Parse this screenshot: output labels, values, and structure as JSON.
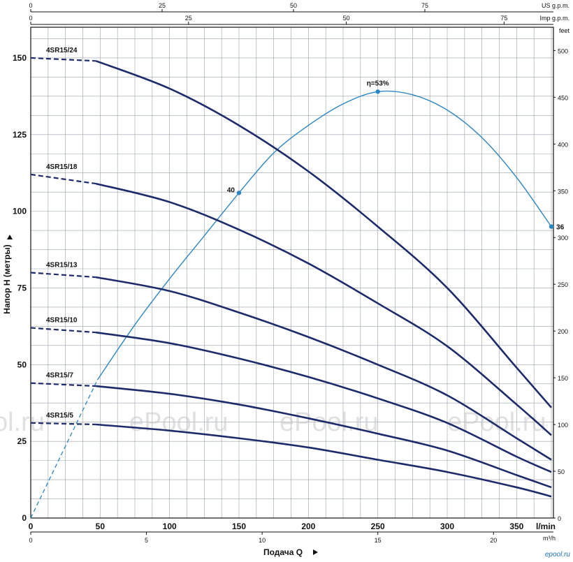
{
  "watermark": {
    "texts": [
      "ol.ru",
      "ePool.ru",
      "ePool.ru",
      "ePool.ru"
    ],
    "corner": "epool.ru"
  },
  "chart_data": {
    "type": "line",
    "title": "",
    "xlabel": "Подача Q",
    "ylabel": "Напор H (метры)",
    "x_unit": "l/min",
    "y_right_unit": "feet",
    "xlim": [
      0,
      375
    ],
    "ylim": [
      0,
      160
    ],
    "grid": true,
    "primary_x_ticks": [
      {
        "v": 0,
        "label": "0"
      },
      {
        "v": 50,
        "label": "50"
      },
      {
        "v": 100,
        "label": "100"
      },
      {
        "v": 150,
        "label": "150"
      },
      {
        "v": 200,
        "label": "200"
      },
      {
        "v": 250,
        "label": "250"
      },
      {
        "v": 300,
        "label": "300"
      },
      {
        "v": 350,
        "label": "350"
      }
    ],
    "m3h_axis": {
      "unit": "m³/h",
      "ticks": [
        {
          "v": 0,
          "label": "0"
        },
        {
          "v": 5,
          "label": "5"
        },
        {
          "v": 10,
          "label": "10"
        },
        {
          "v": 15,
          "label": "15"
        },
        {
          "v": 20,
          "label": "20"
        }
      ]
    },
    "us_gpm_axis": {
      "unit": "US g.p.m.",
      "ticks": [
        {
          "v": 0,
          "label": "0"
        },
        {
          "v": 25,
          "label": "25"
        },
        {
          "v": 50,
          "label": "50"
        },
        {
          "v": 75,
          "label": "75"
        }
      ]
    },
    "imp_gpm_axis": {
      "unit": "Imp g.p.m.",
      "ticks": [
        {
          "v": 0,
          "label": "0"
        },
        {
          "v": 25,
          "label": "25"
        },
        {
          "v": 50,
          "label": "50"
        },
        {
          "v": 75,
          "label": "75"
        }
      ]
    },
    "left_y_ticks": [
      {
        "v": 0,
        "label": "0"
      },
      {
        "v": 25,
        "label": "25"
      },
      {
        "v": 50,
        "label": "50"
      },
      {
        "v": 75,
        "label": "75"
      },
      {
        "v": 100,
        "label": "100"
      },
      {
        "v": 125,
        "label": "125"
      },
      {
        "v": 150,
        "label": "150"
      }
    ],
    "right_y_ticks": [
      {
        "v": 0,
        "label": "0"
      },
      {
        "v": 50,
        "label": "50"
      },
      {
        "v": 100,
        "label": "100"
      },
      {
        "v": 150,
        "label": "150"
      },
      {
        "v": 200,
        "label": "200"
      },
      {
        "v": 250,
        "label": "250"
      },
      {
        "v": 300,
        "label": "300"
      },
      {
        "v": 350,
        "label": "350"
      },
      {
        "v": 400,
        "label": "400"
      },
      {
        "v": 450,
        "label": "450"
      },
      {
        "v": 500,
        "label": "500"
      }
    ],
    "series": [
      {
        "name": "4SR15/24",
        "dashed_until": 47,
        "x": [
          0,
          47,
          100,
          150,
          200,
          250,
          300,
          350,
          375
        ],
        "y": [
          150,
          149,
          140,
          128,
          113,
          95,
          75,
          49,
          36
        ]
      },
      {
        "name": "4SR15/18",
        "dashed_until": 47,
        "x": [
          0,
          47,
          100,
          150,
          200,
          250,
          300,
          350,
          375
        ],
        "y": [
          112,
          109,
          103,
          94,
          83,
          70,
          56,
          37,
          27
        ]
      },
      {
        "name": "4SR15/13",
        "dashed_until": 47,
        "x": [
          0,
          47,
          100,
          150,
          200,
          250,
          300,
          350,
          375
        ],
        "y": [
          80,
          78.5,
          74,
          67,
          59,
          50,
          40,
          26,
          19
        ]
      },
      {
        "name": "4SR15/10",
        "dashed_until": 47,
        "x": [
          0,
          47,
          100,
          150,
          200,
          250,
          300,
          350,
          375
        ],
        "y": [
          62,
          60.5,
          57,
          52,
          46,
          39,
          31,
          20,
          15
        ]
      },
      {
        "name": "4SR15/7",
        "dashed_until": 47,
        "x": [
          0,
          47,
          100,
          150,
          200,
          250,
          300,
          350,
          375
        ],
        "y": [
          44,
          43,
          40.5,
          37,
          32.5,
          27.5,
          22,
          14,
          10
        ]
      },
      {
        "name": "4SR15/5",
        "dashed_until": 47,
        "x": [
          0,
          47,
          100,
          150,
          200,
          250,
          300,
          350,
          375
        ],
        "y": [
          31,
          30.5,
          28.5,
          26,
          23,
          19,
          15,
          10,
          7
        ]
      }
    ],
    "efficiency": {
      "label": "η=53%",
      "dashed_until": 48,
      "x": [
        0,
        48,
        75,
        100,
        125,
        150,
        175,
        200,
        225,
        250,
        275,
        300,
        325,
        350,
        375
      ],
      "y": [
        0,
        45,
        63,
        78,
        92,
        106,
        119,
        128,
        135,
        139,
        138,
        133,
        124,
        111,
        95
      ],
      "points": [
        {
          "x": 150,
          "y": 106,
          "label": "40"
        },
        {
          "x": 250,
          "y": 139,
          "label": "η=53%"
        },
        {
          "x": 375,
          "y": 95,
          "label": "36"
        }
      ]
    }
  }
}
